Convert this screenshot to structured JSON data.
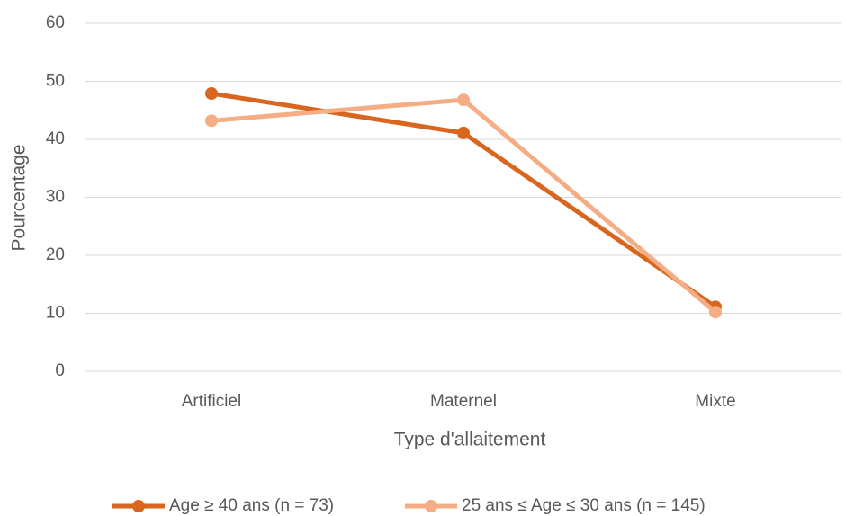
{
  "chart_data": {
    "type": "line",
    "categories": [
      "Artificiel",
      "Maternel",
      "Mixte"
    ],
    "series": [
      {
        "name": "Age ≥ 40 ans (n = 73)",
        "color": "#d9661f",
        "values": [
          47.9,
          41.1,
          11.1
        ]
      },
      {
        "name": "25 ans ≤ Age ≤ 30 ans (n = 145)",
        "color": "#f4ad85",
        "values": [
          43.2,
          46.8,
          10.2
        ]
      }
    ],
    "xlabel": "Type d'allaitement",
    "ylabel": "Pourcentage",
    "ylim": [
      0,
      60
    ],
    "yticks": [
      0,
      10,
      20,
      30,
      40,
      50,
      60
    ],
    "grid": true,
    "legend": "bottom"
  }
}
